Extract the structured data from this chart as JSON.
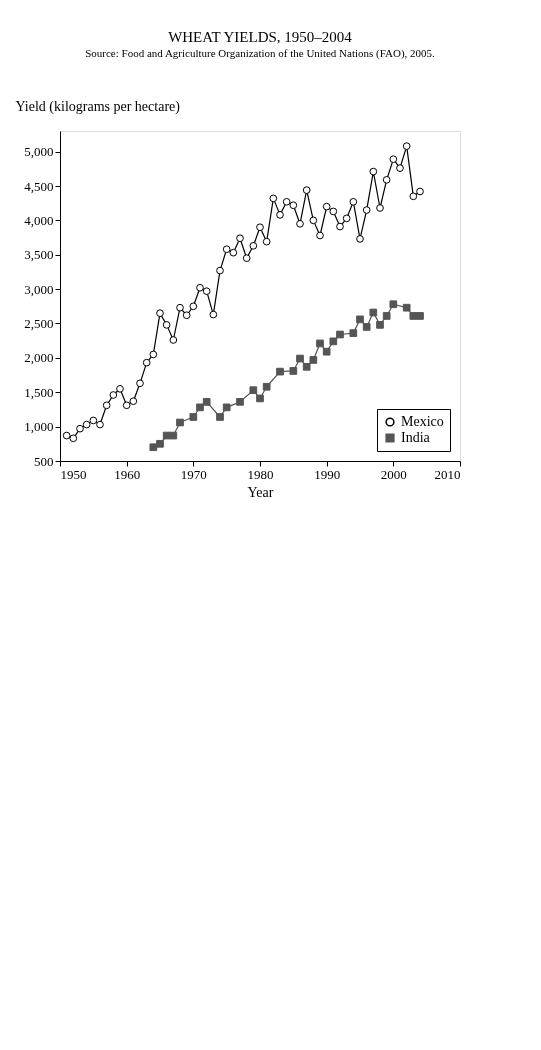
{
  "chart_data": {
    "type": "line",
    "title": "WHEAT YIELDS, 1950–2004",
    "xlabel": "Year",
    "ylabel": "Yield (kilograms per hectare)",
    "annotations": [
      "Source:  Food and Agriculture Organization of the United Nations (FAO), 2005."
    ],
    "xlim": [
      1950,
      2010
    ],
    "xticks": [
      1950,
      1960,
      1970,
      1980,
      1990,
      2000,
      2010
    ],
    "ylim": [
      500,
      5300
    ],
    "yticks": [
      500,
      {
        "value": 1000,
        "label": "1,000"
      },
      {
        "value": 1500,
        "label": "1,500"
      },
      {
        "value": 2000,
        "label": "2,000"
      },
      {
        "value": 2500,
        "label": "2,500"
      },
      {
        "value": 3000,
        "label": "3,000"
      },
      {
        "value": 3500,
        "label": "3,500"
      },
      {
        "value": 4000,
        "label": "4,000"
      },
      {
        "value": 4500,
        "label": "4,500"
      },
      {
        "value": 5000,
        "label": "5,000"
      }
    ],
    "grid": false,
    "legend": "bottom right",
    "line_style": "solid",
    "series": [
      {
        "name": "Mexico",
        "color": "#000000",
        "marker": "circle",
        "x": [
          1951,
          1952,
          1953,
          1954,
          1955,
          1956,
          1957,
          1958,
          1959,
          1960,
          1961,
          1962,
          1963,
          1964,
          1965,
          1966,
          1967,
          1968,
          1969,
          1970,
          1971,
          1972,
          1973,
          1974,
          1975,
          1976,
          1977,
          1978,
          1979,
          1980,
          1981,
          1982,
          1983,
          1984,
          1985,
          1986,
          1987,
          1988,
          1989,
          1990,
          1991,
          1992,
          1993,
          1994,
          1995,
          1996,
          1997,
          1998,
          1999,
          2000,
          2001,
          2002,
          2003,
          2004
        ],
        "values": [
          870,
          830,
          970,
          1030,
          1090,
          1030,
          1310,
          1460,
          1550,
          1310,
          1370,
          1630,
          1930,
          2050,
          2650,
          2480,
          2260,
          2730,
          2620,
          2750,
          3020,
          2970,
          2630,
          3270,
          3580,
          3530,
          3740,
          3450,
          3630,
          3900,
          3690,
          4320,
          4080,
          4270,
          4220,
          3950,
          4440,
          4000,
          3780,
          4200,
          4130,
          3910,
          4030,
          4270,
          3730,
          4150,
          4710,
          4180,
          4590,
          4890,
          4760,
          5080,
          4350,
          4420
        ]
      },
      {
        "name": "India",
        "color": "#555555",
        "marker": "square",
        "x": [
          1964,
          1965,
          1966,
          1967,
          1968,
          1970,
          1971,
          1972,
          1974,
          1975,
          1977,
          1979,
          1980,
          1981,
          1983,
          1985,
          1986,
          1987,
          1988,
          1989,
          1990,
          1991,
          1992,
          1994,
          1995,
          1996,
          1997,
          1998,
          1999,
          2000,
          2002,
          2003,
          2004
        ],
        "values": [
          700,
          750,
          870,
          870,
          1060,
          1140,
          1280,
          1360,
          1140,
          1280,
          1360,
          1530,
          1410,
          1580,
          1800,
          1810,
          1990,
          1870,
          1970,
          2210,
          2090,
          2240,
          2340,
          2360,
          2560,
          2450,
          2660,
          2480,
          2610,
          2780,
          2730,
          2610,
          2610
        ]
      }
    ]
  }
}
